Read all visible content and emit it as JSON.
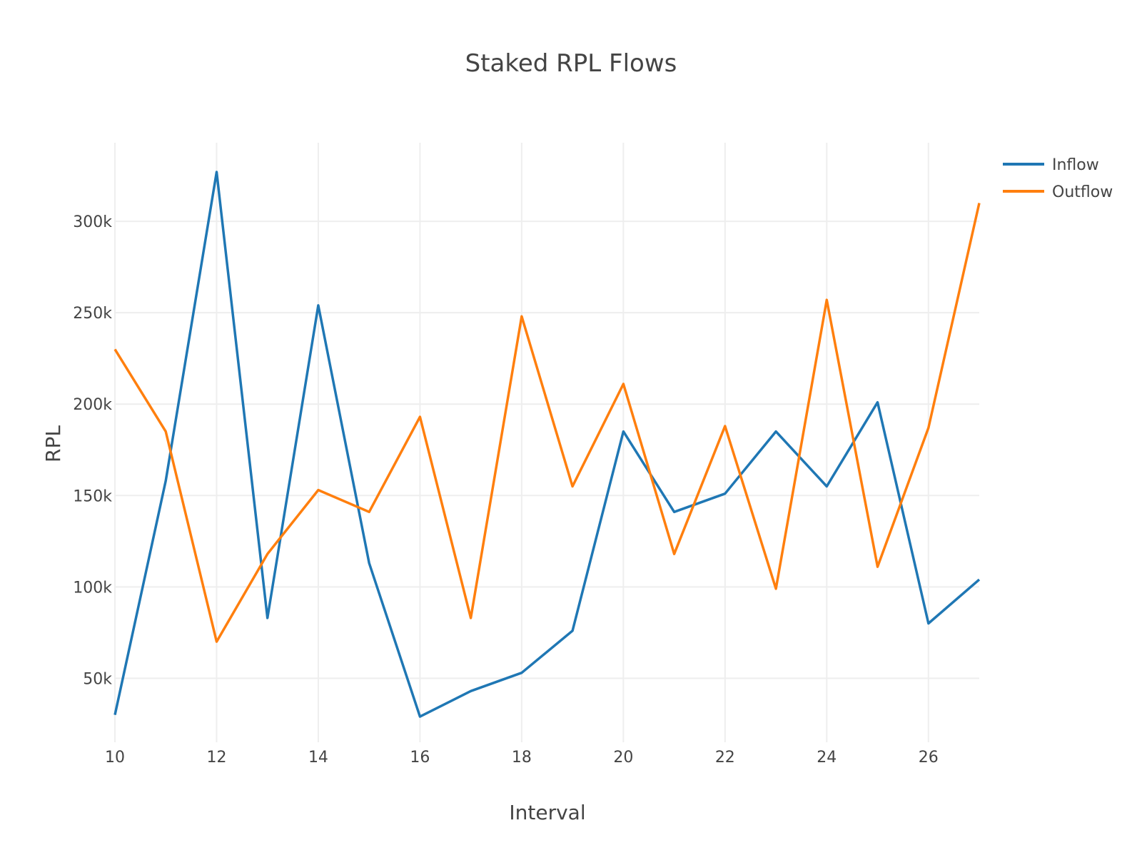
{
  "chart_data": {
    "type": "line",
    "title": "Staked RPL Flows",
    "xlabel": "Interval",
    "ylabel": "RPL",
    "x": [
      10,
      11,
      12,
      13,
      14,
      15,
      16,
      17,
      18,
      19,
      20,
      21,
      22,
      23,
      24,
      25,
      26,
      27
    ],
    "series": [
      {
        "name": "Inflow",
        "color": "#1f77b4",
        "values": [
          30000,
          158000,
          327000,
          83000,
          254000,
          113000,
          29000,
          43000,
          53000,
          76000,
          185000,
          141000,
          151000,
          185000,
          155000,
          201000,
          80000,
          104000
        ]
      },
      {
        "name": "Outflow",
        "color": "#ff7f0e",
        "values": [
          230000,
          185000,
          70000,
          118000,
          153000,
          141000,
          193000,
          83000,
          248000,
          155000,
          211000,
          118000,
          188000,
          99000,
          257000,
          111000,
          187000,
          310000
        ]
      }
    ],
    "xlim": [
      10,
      27
    ],
    "ylim": [
      15000,
      343000
    ],
    "x_ticks": [
      10,
      12,
      14,
      16,
      18,
      20,
      22,
      24,
      26
    ],
    "y_ticks": [
      50000,
      100000,
      150000,
      200000,
      250000,
      300000
    ],
    "y_tick_labels": [
      "50k",
      "100k",
      "150k",
      "200k",
      "250k",
      "300k"
    ],
    "grid": true,
    "legend_position": "top-right"
  }
}
